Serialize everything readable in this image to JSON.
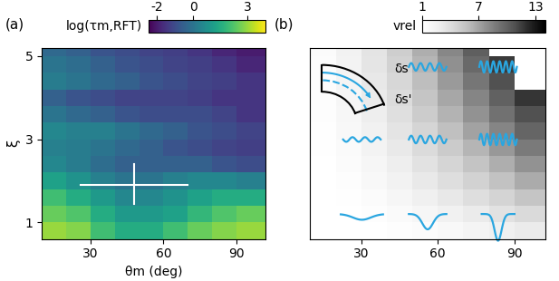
{
  "chart_data": [
    {
      "type": "heatmap",
      "panel_label": "(a)",
      "x_label": "θm (deg)",
      "y_label": "ξ",
      "color": "viridis",
      "xlim": [
        10,
        102
      ],
      "ylim": [
        0.6,
        5.2
      ],
      "xticks": [
        30,
        60,
        90
      ],
      "yticks": [
        1,
        3,
        5
      ],
      "x_edges": [
        10,
        20,
        30,
        40,
        50,
        60,
        70,
        80,
        90,
        102
      ],
      "y_edges": [
        0.6,
        1.0,
        1.4,
        1.8,
        2.2,
        2.6,
        3.0,
        3.4,
        3.8,
        4.2,
        4.6,
        5.0,
        5.2
      ],
      "cells": [
        [
          3.0,
          2.8,
          2.0,
          1.5,
          1.5,
          2.0,
          2.5,
          2.8,
          3.0
        ],
        [
          2.5,
          2.2,
          1.5,
          1.0,
          1.0,
          1.2,
          1.8,
          2.2,
          2.5
        ],
        [
          2.0,
          1.5,
          1.0,
          0.5,
          0.5,
          0.8,
          1.2,
          1.5,
          1.5
        ],
        [
          1.2,
          0.8,
          0.3,
          0.0,
          0.0,
          0.3,
          0.5,
          0.5,
          0.3
        ],
        [
          0.5,
          0.2,
          -0.2,
          -0.5,
          -0.5,
          -0.5,
          -0.5,
          -0.8,
          -1.0
        ],
        [
          0.3,
          0.2,
          0.0,
          -0.3,
          -0.5,
          -0.8,
          -1.0,
          -1.2,
          -1.3
        ],
        [
          0.5,
          0.3,
          0.3,
          0.0,
          -0.3,
          -0.5,
          -0.8,
          -1.0,
          -1.2
        ],
        [
          0.0,
          -0.3,
          -0.5,
          -0.8,
          -1.0,
          -1.0,
          -1.0,
          -1.2,
          -1.5
        ],
        [
          -0.5,
          -0.8,
          -1.0,
          -1.2,
          -1.2,
          -1.2,
          -1.3,
          -1.5,
          -1.5
        ],
        [
          0.2,
          0.0,
          -0.3,
          -0.5,
          -0.8,
          -1.0,
          -1.2,
          -1.3,
          -1.5
        ],
        [
          0.0,
          -0.2,
          -0.5,
          -0.8,
          -1.0,
          -1.2,
          -1.3,
          -1.5,
          -1.8
        ],
        [
          -0.3,
          -0.5,
          -0.8,
          -1.0,
          -1.2,
          -1.3,
          -1.5,
          -1.8,
          -2.0
        ]
      ],
      "colorbar": {
        "label": "log(τm,RFT)",
        "range": [
          -2.5,
          4
        ],
        "ticks": [
          -2,
          0,
          3
        ]
      },
      "optimum": {
        "x": 48,
        "y": 1.9,
        "x_range": [
          26,
          70
        ],
        "y_range": [
          1.45,
          2.4
        ]
      }
    },
    {
      "type": "heatmap",
      "panel_label": "(b)",
      "color": "Greys",
      "tick_labels": "x",
      "xlim": [
        10,
        102
      ],
      "ylim": [
        0.6,
        5.2
      ],
      "xticks": [
        30,
        60,
        90
      ],
      "x_edges": [
        10,
        20,
        30,
        40,
        50,
        60,
        70,
        80,
        90,
        102
      ],
      "y_edges": [
        0.6,
        1.0,
        1.4,
        1.8,
        2.2,
        2.6,
        3.0,
        3.4,
        3.8,
        4.2,
        4.6,
        5.0,
        5.2
      ],
      "cells": [
        [
          1.0,
          1.0,
          1.1,
          1.3,
          1.5,
          1.8,
          2.2,
          2.6,
          3.0
        ],
        [
          1.0,
          1.1,
          1.3,
          1.6,
          2.0,
          2.5,
          3.0,
          3.6,
          4.2
        ],
        [
          1.0,
          1.2,
          1.5,
          2.0,
          2.6,
          3.2,
          3.9,
          4.6,
          5.4
        ],
        [
          1.1,
          1.3,
          1.8,
          2.4,
          3.1,
          3.9,
          4.7,
          5.6,
          6.6
        ],
        [
          1.1,
          1.5,
          2.0,
          2.8,
          3.6,
          4.5,
          5.5,
          6.5,
          7.7
        ],
        [
          1.2,
          1.6,
          2.3,
          3.1,
          4.1,
          5.1,
          6.2,
          7.4,
          8.8
        ],
        [
          1.2,
          1.8,
          2.5,
          3.5,
          4.5,
          5.7,
          7.0,
          8.3,
          9.8
        ],
        [
          1.3,
          1.9,
          2.8,
          3.8,
          5.0,
          6.3,
          7.7,
          9.2,
          10.8
        ],
        [
          1.3,
          2.0,
          3.0,
          4.1,
          5.4,
          6.8,
          8.3,
          10.0,
          11.8
        ],
        [
          1.4,
          2.2,
          3.2,
          4.4,
          5.8,
          7.3,
          9.0,
          10.8,
          null
        ],
        [
          1.4,
          2.3,
          3.4,
          4.7,
          6.2,
          7.8,
          9.6,
          11.6,
          null
        ],
        [
          1.5,
          2.4,
          3.5,
          4.9,
          6.5,
          8.2,
          10.1,
          null,
          null
        ]
      ],
      "colorbar": {
        "label": "vrel",
        "range": [
          1,
          14
        ],
        "ticks": [
          1,
          7,
          13
        ]
      },
      "annotations": [
        "δs",
        "δs'"
      ]
    }
  ]
}
